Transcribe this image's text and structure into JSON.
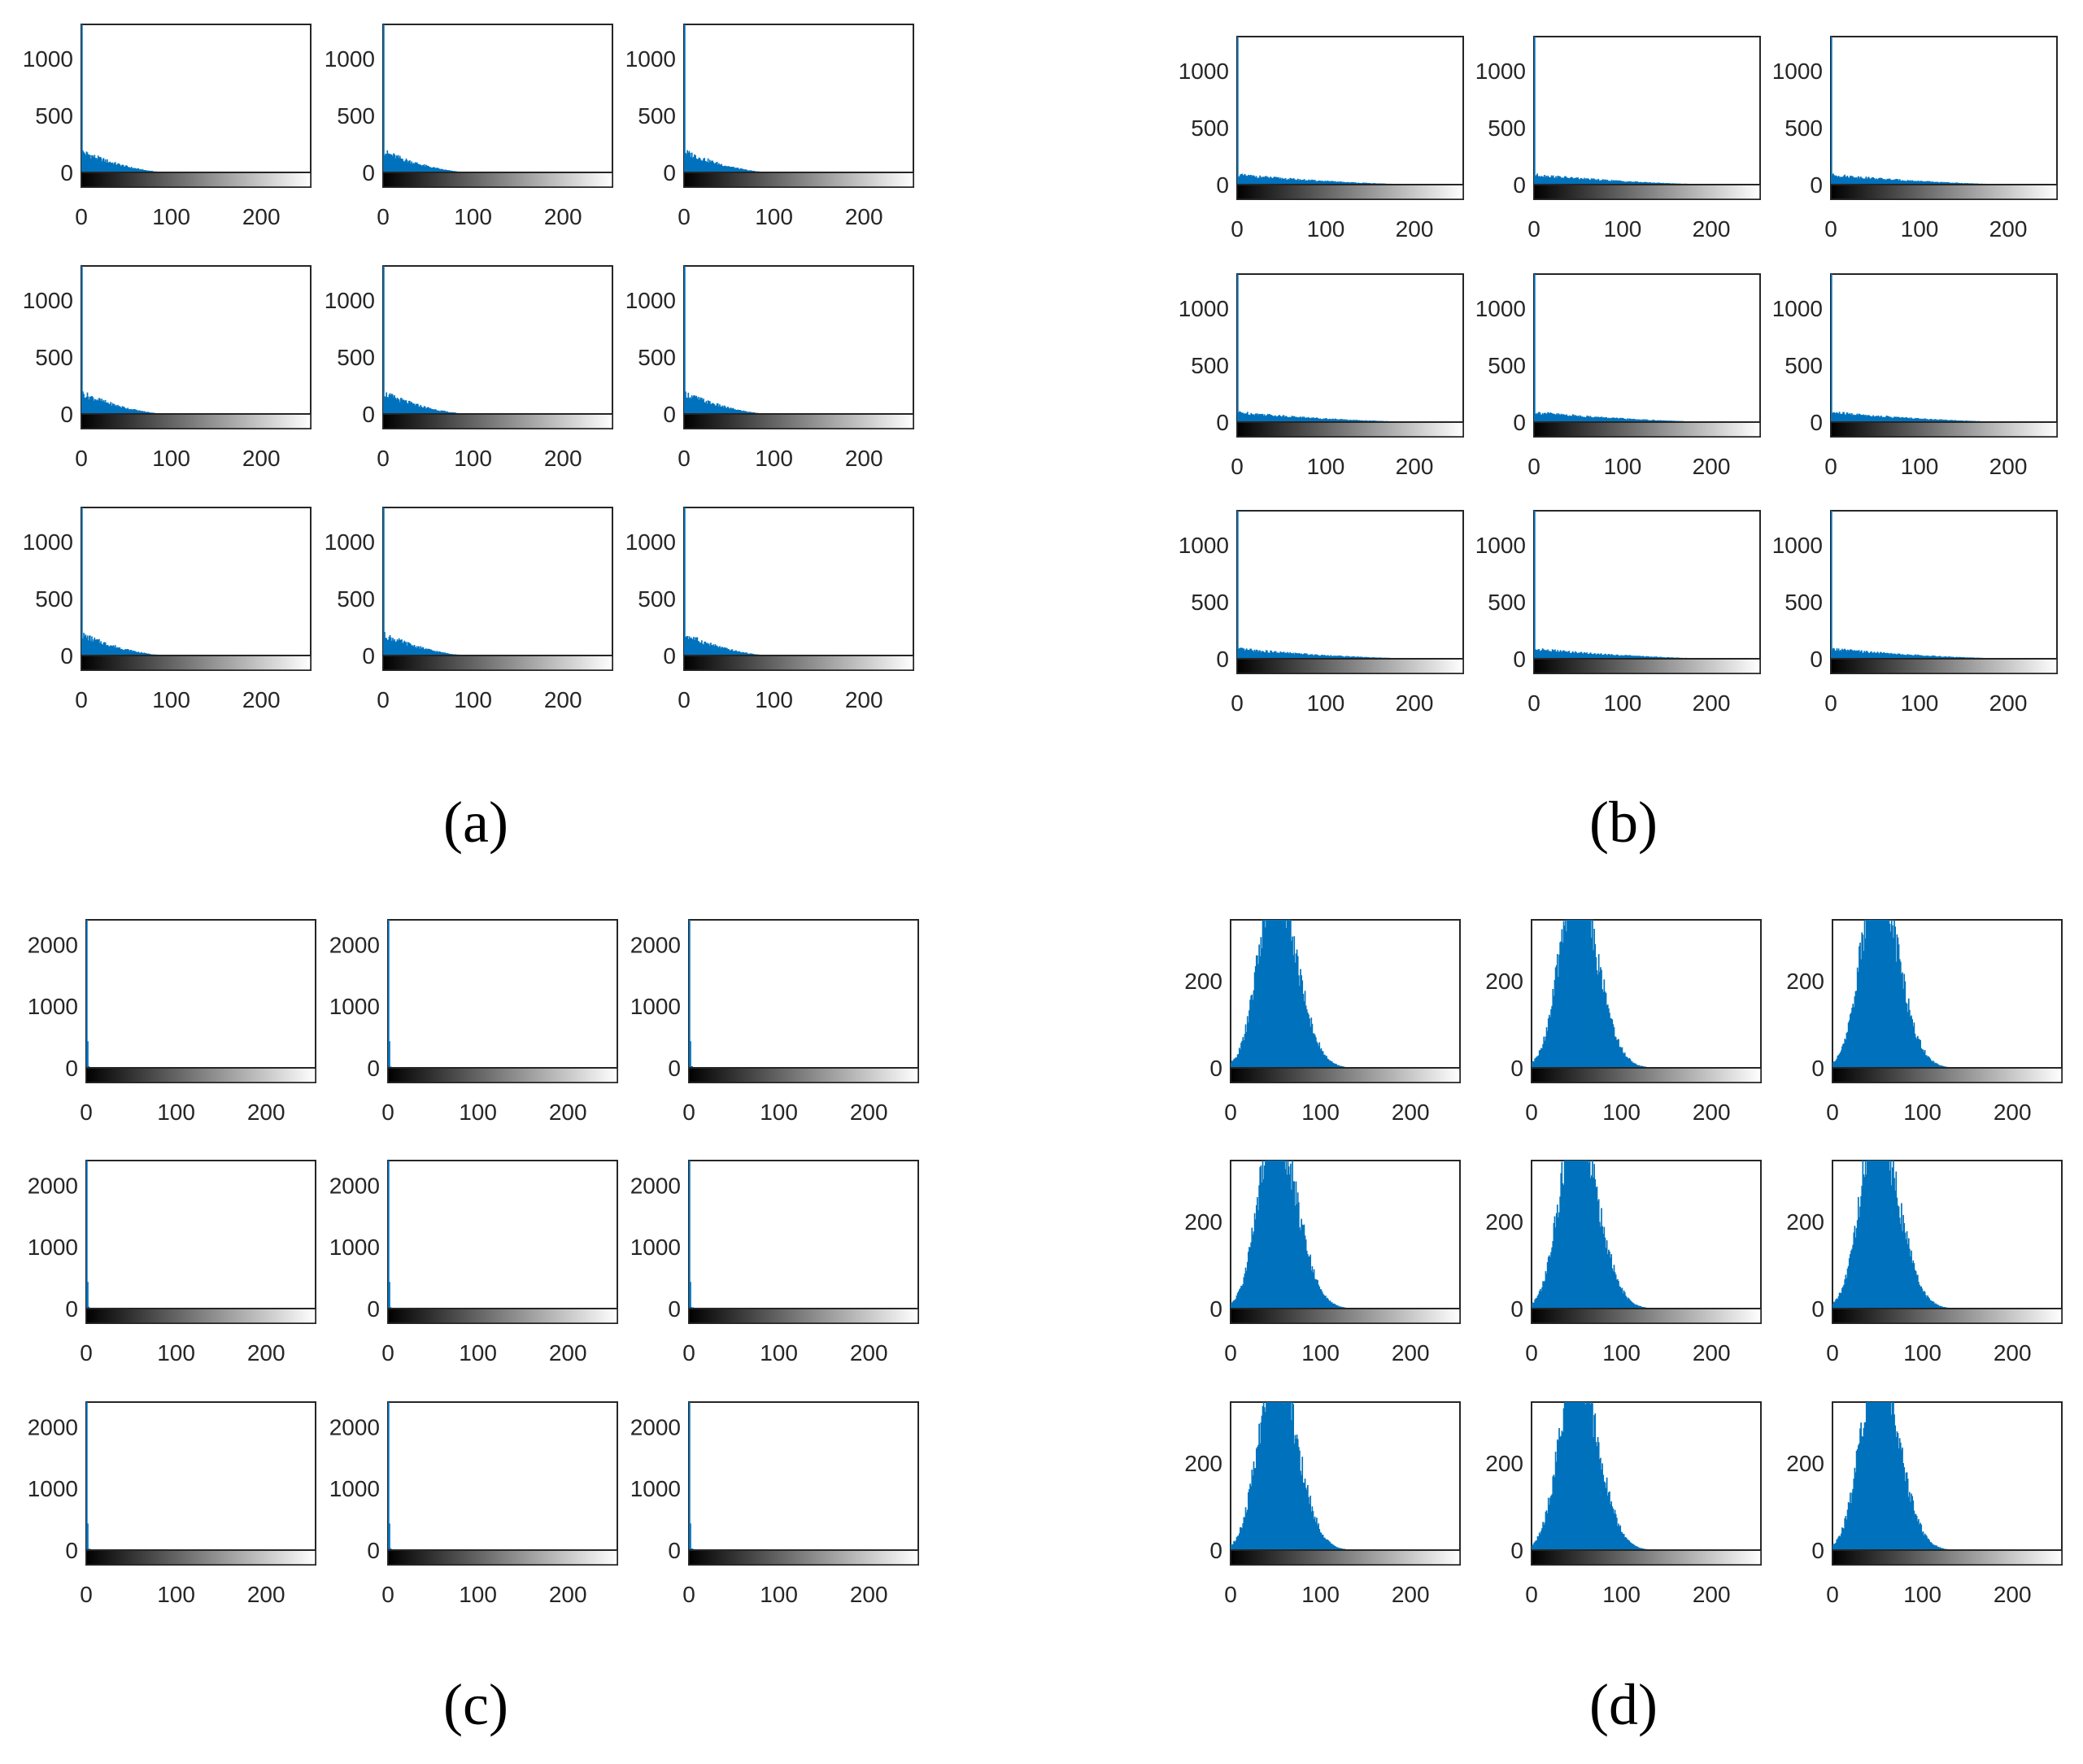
{
  "panels": [
    {
      "label": "(a)",
      "chart_data": {
        "type": "bar",
        "layout": "3x3 grid of intensity histograms",
        "xlim": [
          0,
          255
        ],
        "ylim": [
          0,
          1300
        ],
        "x_ticks": [
          "0",
          "100",
          "200"
        ],
        "y_ticks": [
          "0",
          "500",
          "1000"
        ],
        "colorbar": "grayscale gradient 0-255",
        "bar_color": "#0072BD",
        "distribution": {
          "shape": "decay",
          "peak_y": 180,
          "spike_at_0": 1300,
          "falls_to_zero_near": 100
        }
      }
    },
    {
      "label": "(b)",
      "chart_data": {
        "type": "bar",
        "layout": "3x3 grid of intensity histograms",
        "xlim": [
          0,
          255
        ],
        "ylim": [
          0,
          1300
        ],
        "x_ticks": [
          "0",
          "100",
          "200"
        ],
        "y_ticks": [
          "0",
          "500",
          "1000"
        ],
        "colorbar": "grayscale gradient 0-255",
        "bar_color": "#0072BD",
        "distribution": {
          "shape": "decay",
          "peak_y": 85,
          "spike_at_0": 1300,
          "falls_to_zero_near": 230
        }
      }
    },
    {
      "label": "(c)",
      "chart_data": {
        "type": "bar",
        "layout": "3x3 grid of intensity histograms",
        "xlim": [
          0,
          255
        ],
        "ylim": [
          0,
          2400
        ],
        "x_ticks": [
          "0",
          "100",
          "200"
        ],
        "y_ticks": [
          "0",
          "1000",
          "2000"
        ],
        "colorbar": "grayscale gradient 0-255",
        "bar_color": "#0072BD",
        "distribution": {
          "shape": "spike",
          "peak_y": 30,
          "spike_at_0": 2400,
          "falls_to_zero_near": 8
        }
      }
    },
    {
      "label": "(d)",
      "chart_data": {
        "type": "bar",
        "layout": "3x3 grid of intensity histograms",
        "xlim": [
          0,
          255
        ],
        "ylim": [
          0,
          340
        ],
        "x_ticks": [
          "0",
          "100",
          "200"
        ],
        "y_ticks": [
          "0",
          "200"
        ],
        "colorbar": "grayscale gradient 0-255",
        "bar_color": "#0072BD",
        "distribution": {
          "shape": "bell",
          "peak_y": 340,
          "peak_x": 48,
          "spread": 18,
          "falls_to_zero_near": 120
        }
      }
    }
  ]
}
